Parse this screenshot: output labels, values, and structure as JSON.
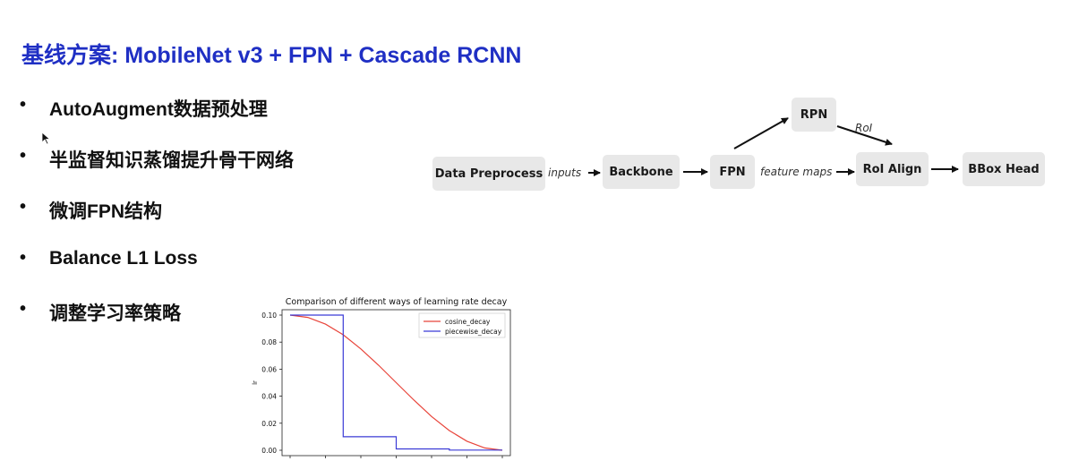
{
  "slide": {
    "title": "基线方案: MobileNet v3 + FPN + Cascade RCNN",
    "title_color": "#1f2fc4",
    "bullets": [
      "AutoAugment数据预处理",
      "半监督知识蒸馏提升骨干网络",
      "微调FPN结构",
      "Balance L1 Loss",
      "调整学习率策略"
    ],
    "bullet_symbol": "•"
  },
  "diagram": {
    "nodes": {
      "data_preprocess": "Data Preprocess",
      "backbone": "Backbone",
      "fpn": "FPN",
      "rpn": "RPN",
      "roi_align": "RoI Align",
      "bbox_head": "BBox Head"
    },
    "edge_labels": {
      "inputs": "inputs",
      "feature_maps": "feature maps",
      "roi": "RoI"
    }
  },
  "chart_data": {
    "type": "line",
    "title": "Comparison of different ways of learning rate decay",
    "xlabel": "",
    "ylabel": "lr",
    "ylim": [
      0,
      0.1
    ],
    "yticks": [
      "0.10",
      "0.08",
      "0.06",
      "0.04",
      "0.02",
      "0.00"
    ],
    "ytick_values": [
      0.1,
      0.08,
      0.06,
      0.04,
      0.02,
      0.0
    ],
    "xlim": [
      0,
      60
    ],
    "grid": false,
    "legend": "top-right",
    "series": [
      {
        "name": "cosine_decay",
        "color": "#e8443a",
        "x": [
          0,
          5,
          10,
          15,
          20,
          25,
          30,
          35,
          40,
          45,
          50,
          55,
          60
        ],
        "y": [
          0.1,
          0.0983,
          0.0933,
          0.0854,
          0.075,
          0.0629,
          0.05,
          0.0371,
          0.025,
          0.0146,
          0.0067,
          0.0017,
          0.0
        ]
      },
      {
        "name": "piecewise_decay",
        "color": "#3b3bd6",
        "x": [
          0,
          15,
          15,
          30,
          30,
          45,
          45,
          60
        ],
        "y": [
          0.1,
          0.1,
          0.01,
          0.01,
          0.001,
          0.001,
          0.0001,
          0.0001
        ]
      }
    ]
  }
}
